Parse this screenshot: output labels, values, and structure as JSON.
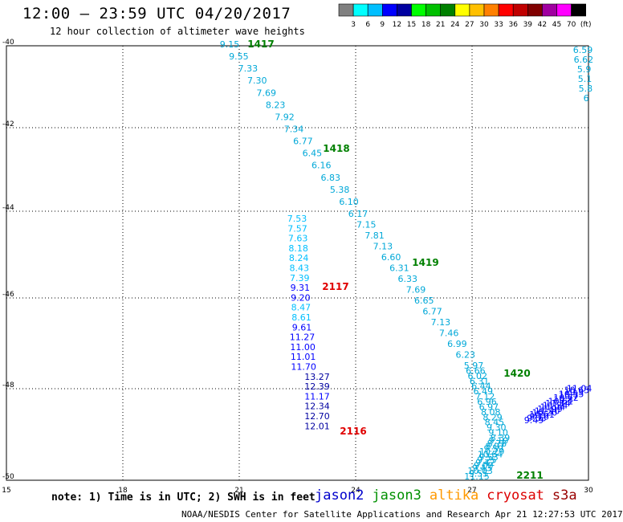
{
  "header": {
    "title": "12:00 – 23:59 UTC 04/20/2017",
    "subtitle": "12 hour collection of altimeter wave heights"
  },
  "colorbar": {
    "colors": [
      "#808080",
      "#00ffff",
      "#00bfff",
      "#0000ff",
      "#0000a0",
      "#00ff00",
      "#00c000",
      "#008000",
      "#ffff00",
      "#ffc000",
      "#ff8000",
      "#ff0000",
      "#c00000",
      "#800000",
      "#a000a0",
      "#ff00ff",
      "#000000"
    ],
    "labels": [
      "3",
      "6",
      "9",
      "12",
      "15",
      "18",
      "21",
      "24",
      "27",
      "30",
      "33",
      "36",
      "39",
      "42",
      "45",
      "70",
      "(ft)"
    ]
  },
  "map": {
    "x_ticks": [
      "15",
      "18",
      "21",
      "24",
      "27",
      "30"
    ],
    "y_ticks": [
      "-40",
      "-42",
      "-44",
      "-46",
      "-48",
      "-50"
    ],
    "passes": [
      {
        "id": "1417",
        "color": "#008000"
      },
      {
        "id": "1418",
        "color": "#008000"
      },
      {
        "id": "1419",
        "color": "#008000"
      },
      {
        "id": "1420",
        "color": "#008000"
      },
      {
        "id": "2117",
        "color": "#e00000"
      },
      {
        "id": "2116",
        "color": "#e00000"
      },
      {
        "id": "2211",
        "color": "#008000"
      }
    ],
    "tracks": {
      "track_a": {
        "color": "#00a8d8",
        "values": [
          "9.15",
          "9.55",
          "7.33",
          "7.30",
          "7.69",
          "8.23",
          "7.92",
          "7.34",
          "6.77",
          "6.45",
          "6.16",
          "6.83",
          "5.38",
          "6.10",
          "6.17",
          "7.15",
          "7.81",
          "7.13",
          "6.60",
          "6.31",
          "6.33",
          "7.69",
          "6.65",
          "6.77",
          "7.13",
          "7.46",
          "6.99",
          "6.23",
          "5.97",
          "6.66",
          "6.02",
          "6.31",
          "6.44",
          "6.49",
          "7.12",
          "6.96",
          "6.97",
          "8.08",
          "8.29",
          "8.45",
          "9.30",
          "9.10",
          "8.39",
          "9.10",
          "8.78",
          "8.97",
          "9.59",
          "10.29",
          "10.64",
          "9.53",
          "9.25",
          "9.42",
          "9.00",
          "9.43",
          "10.03",
          "9.55",
          "11.15"
        ]
      },
      "track_b": {
        "values": [
          "7.53",
          "7.57",
          "7.63",
          "8.18",
          "8.24",
          "8.43",
          "7.39",
          "9.31",
          "9.20",
          "8.47",
          "8.61",
          "9.61",
          "11.27",
          "11.00",
          "11.01",
          "11.70",
          "13.27",
          "12.39",
          "11.17",
          "12.34",
          "12.70",
          "12.01"
        ]
      },
      "track_c": {
        "values": [
          "9.49",
          "9.03",
          "9.16",
          "10.61",
          "10.20",
          "11.10",
          "11.99",
          "11.04",
          "11.34",
          "11.14",
          "10.61",
          "10.8",
          "10.72",
          "10.7",
          "10.55",
          "10.5",
          "10.65",
          "11.04"
        ]
      },
      "track_d": {
        "values": [
          "6.59",
          "6.62",
          "5.9",
          "5.1",
          "5.8",
          "6"
        ]
      }
    }
  },
  "footer": {
    "note": "note:  1) Time is in UTC;  2) SWH is in feet",
    "satellites": [
      {
        "name": "jason2",
        "color": "#0000cc"
      },
      {
        "name": "jason3",
        "color": "#009000"
      },
      {
        "name": "altika",
        "color": "#ff9900"
      },
      {
        "name": "cryosat",
        "color": "#dd0000"
      },
      {
        "name": "s3a",
        "color": "#990000"
      }
    ],
    "credit": "NOAA/NESDIS Center for Satellite Applications and Research   Apr 21 12:27:53 UTC 2017"
  }
}
